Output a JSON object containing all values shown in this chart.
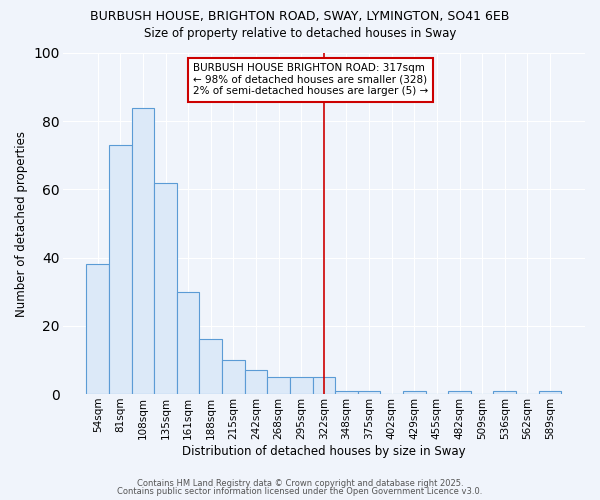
{
  "title1": "BURBUSH HOUSE, BRIGHTON ROAD, SWAY, LYMINGTON, SO41 6EB",
  "title2": "Size of property relative to detached houses in Sway",
  "xlabel": "Distribution of detached houses by size in Sway",
  "ylabel": "Number of detached properties",
  "categories": [
    "54sqm",
    "81sqm",
    "108sqm",
    "135sqm",
    "161sqm",
    "188sqm",
    "215sqm",
    "242sqm",
    "268sqm",
    "295sqm",
    "322sqm",
    "348sqm",
    "375sqm",
    "402sqm",
    "429sqm",
    "455sqm",
    "482sqm",
    "509sqm",
    "536sqm",
    "562sqm",
    "589sqm"
  ],
  "values": [
    38,
    73,
    84,
    62,
    30,
    16,
    10,
    7,
    5,
    5,
    5,
    1,
    1,
    0,
    1,
    0,
    1,
    0,
    1,
    0,
    1
  ],
  "bar_color": "#dce9f8",
  "bar_edge_color": "#5b9bd5",
  "background_color": "#f0f4fb",
  "plot_bg_color": "#f0f4fb",
  "grid_color": "#ffffff",
  "red_line_index": 10,
  "annotation_text": "BURBUSH HOUSE BRIGHTON ROAD: 317sqm\n← 98% of detached houses are smaller (328)\n2% of semi-detached houses are larger (5) →",
  "annotation_box_color": "#ffffff",
  "annotation_box_edge": "#cc0000",
  "ylim": [
    0,
    100
  ],
  "yticks": [
    0,
    20,
    40,
    60,
    80,
    100
  ],
  "footer1": "Contains HM Land Registry data © Crown copyright and database right 2025.",
  "footer2": "Contains public sector information licensed under the Open Government Licence v3.0."
}
